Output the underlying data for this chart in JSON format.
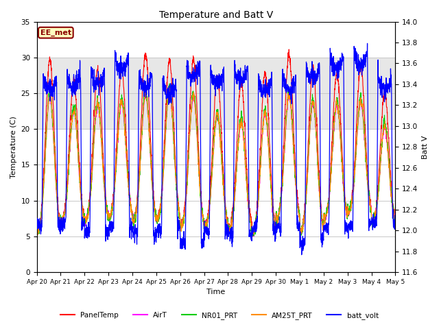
{
  "title": "Temperature and Batt V",
  "xlabel": "Time",
  "ylabel_left": "Temperature (C)",
  "ylabel_right": "Batt V",
  "ylim_left": [
    0,
    35
  ],
  "ylim_right": [
    11.6,
    14.0
  ],
  "xlim": [
    0,
    15
  ],
  "x_tick_labels": [
    "Apr 20",
    "Apr 21",
    "Apr 22",
    "Apr 23",
    "Apr 24",
    "Apr 25",
    "Apr 26",
    "Apr 27",
    "Apr 28",
    "Apr 29",
    "Apr 30",
    "May 1",
    "May 2",
    "May 3",
    "May 4",
    "May 5"
  ],
  "x_tick_positions": [
    0,
    1,
    2,
    3,
    4,
    5,
    6,
    7,
    8,
    9,
    10,
    11,
    12,
    13,
    14,
    15
  ],
  "station_label": "EE_met",
  "station_label_color": "#8B0000",
  "station_label_bg": "#ffffc0",
  "shaded_band": [
    20,
    30
  ],
  "shaded_band_color": "#d8d8d8",
  "colors": {
    "PanelTemp": "#ff0000",
    "AirT": "#ff00ff",
    "NR01_PRT": "#00cc00",
    "AM25T_PRT": "#ff8c00",
    "batt_volt": "#0000ff"
  },
  "legend_labels": [
    "PanelTemp",
    "AirT",
    "NR01_PRT",
    "AM25T_PRT",
    "batt_volt"
  ],
  "background_color": "#ffffff",
  "grid_color": "#c8c8c8",
  "yticks_left": [
    0,
    5,
    10,
    15,
    20,
    25,
    30,
    35
  ],
  "yticks_right": [
    11.6,
    11.8,
    12.0,
    12.2,
    12.4,
    12.6,
    12.8,
    13.0,
    13.2,
    13.4,
    13.6,
    13.8,
    14.0
  ]
}
